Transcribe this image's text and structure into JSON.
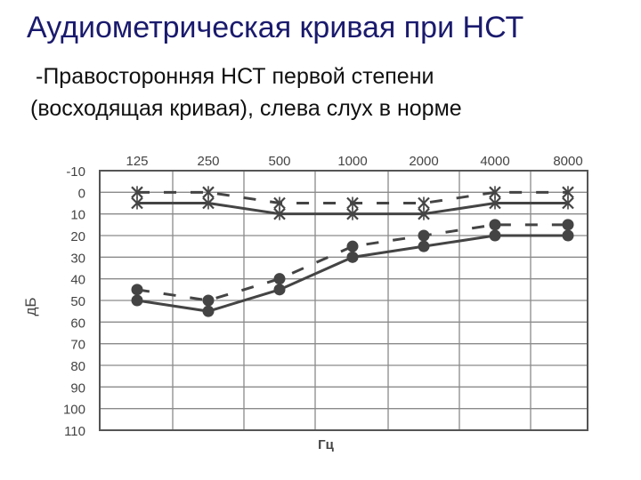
{
  "slide": {
    "title": "Аудиометрическая кривая при НСТ",
    "subtitle_line1": "-Правосторонняя НСТ первой степени",
    "subtitle_line2": "(восходящая кривая), слева слух в норме"
  },
  "chart_data": {
    "type": "line",
    "title": "",
    "xlabel": "Гц",
    "ylabel": "дБ",
    "x_categories": [
      "125",
      "250",
      "500",
      "1000",
      "2000",
      "4000",
      "8000"
    ],
    "y_ticks": [
      "-10",
      "0",
      "10",
      "20",
      "30",
      "40",
      "50",
      "60",
      "70",
      "80",
      "90",
      "100",
      "110"
    ],
    "ylim": [
      -10,
      110
    ],
    "y_inverted": true,
    "grid": true,
    "series": [
      {
        "name": "",
        "marker": "x",
        "line_style": "dashed",
        "x": [
          "125",
          "250",
          "500",
          "1000",
          "2000",
          "4000",
          "8000"
        ],
        "values": [
          0,
          0,
          5,
          5,
          5,
          0,
          0
        ]
      },
      {
        "name": "",
        "marker": "x",
        "line_style": "solid",
        "x": [
          "125",
          "250",
          "500",
          "1000",
          "2000",
          "4000",
          "8000"
        ],
        "values": [
          5,
          5,
          10,
          10,
          10,
          5,
          5
        ]
      },
      {
        "name": "",
        "marker": "dot",
        "line_style": "dashed",
        "x": [
          "125",
          "250",
          "500",
          "1000",
          "2000",
          "4000",
          "8000"
        ],
        "values": [
          45,
          50,
          40,
          25,
          20,
          15,
          15
        ]
      },
      {
        "name": "",
        "marker": "dot",
        "line_style": "solid",
        "x": [
          "125",
          "250",
          "500",
          "1000",
          "2000",
          "4000",
          "8000"
        ],
        "values": [
          50,
          55,
          45,
          30,
          25,
          20,
          20
        ]
      }
    ],
    "colors": {
      "line": "#444444",
      "grid": "#8a8a8a",
      "frame": "#555555"
    }
  }
}
